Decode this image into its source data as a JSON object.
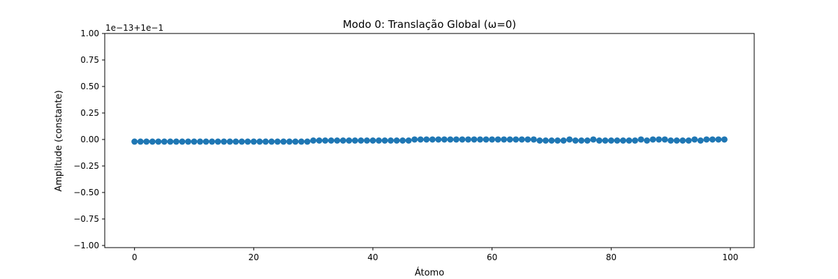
{
  "chart_data": {
    "type": "scatter",
    "title": "Modo 0: Translação Global (ω=0)",
    "xlabel": "Átomo",
    "ylabel": "Amplitude (constante)",
    "offset_text": "1e−13+1e−1",
    "xlim": [
      -5,
      104
    ],
    "ylim": [
      -1.02,
      1.0
    ],
    "xticks": [
      0,
      20,
      40,
      60,
      80,
      100
    ],
    "yticks": [
      -1.0,
      -0.75,
      -0.5,
      -0.25,
      0.0,
      0.25,
      0.5,
      0.75,
      1.0
    ],
    "ytick_labels": [
      "−1.00",
      "−0.75",
      "−0.50",
      "−0.25",
      "0.00",
      "0.25",
      "0.50",
      "0.75",
      "1.00"
    ],
    "xtick_labels": [
      "0",
      "20",
      "40",
      "60",
      "80",
      "100"
    ],
    "marker_color": "#1f77b4",
    "grid": false,
    "x": [
      0,
      1,
      2,
      3,
      4,
      5,
      6,
      7,
      8,
      9,
      10,
      11,
      12,
      13,
      14,
      15,
      16,
      17,
      18,
      19,
      20,
      21,
      22,
      23,
      24,
      25,
      26,
      27,
      28,
      29,
      30,
      31,
      32,
      33,
      34,
      35,
      36,
      37,
      38,
      39,
      40,
      41,
      42,
      43,
      44,
      45,
      46,
      47,
      48,
      49,
      50,
      51,
      52,
      53,
      54,
      55,
      56,
      57,
      58,
      59,
      60,
      61,
      62,
      63,
      64,
      65,
      66,
      67,
      68,
      69,
      70,
      71,
      72,
      73,
      74,
      75,
      76,
      77,
      78,
      79,
      80,
      81,
      82,
      83,
      84,
      85,
      86,
      87,
      88,
      89,
      90,
      91,
      92,
      93,
      94,
      95,
      96,
      97,
      98,
      99
    ],
    "y": [
      -0.02,
      -0.02,
      -0.02,
      -0.02,
      -0.02,
      -0.02,
      -0.02,
      -0.02,
      -0.02,
      -0.02,
      -0.02,
      -0.02,
      -0.02,
      -0.02,
      -0.02,
      -0.02,
      -0.02,
      -0.02,
      -0.02,
      -0.02,
      -0.02,
      -0.02,
      -0.02,
      -0.02,
      -0.02,
      -0.02,
      -0.02,
      -0.02,
      -0.02,
      -0.02,
      -0.01,
      -0.01,
      -0.01,
      -0.01,
      -0.01,
      -0.01,
      -0.01,
      -0.01,
      -0.01,
      -0.01,
      -0.01,
      -0.01,
      -0.01,
      -0.01,
      -0.01,
      -0.01,
      -0.01,
      0.0,
      0.0,
      0.0,
      0.0,
      0.0,
      0.0,
      0.0,
      0.0,
      0.0,
      0.0,
      0.0,
      0.0,
      0.0,
      0.0,
      0.0,
      0.0,
      0.0,
      0.0,
      0.0,
      0.0,
      0.0,
      -0.01,
      -0.01,
      -0.01,
      -0.01,
      -0.01,
      0.0,
      -0.01,
      -0.01,
      -0.01,
      0.0,
      -0.01,
      -0.01,
      -0.01,
      -0.01,
      -0.01,
      -0.01,
      -0.01,
      0.0,
      -0.01,
      0.0,
      0.0,
      0.0,
      -0.01,
      -0.01,
      -0.01,
      -0.01,
      0.0,
      -0.01,
      0.0,
      0.0,
      0.0,
      0.0
    ]
  }
}
